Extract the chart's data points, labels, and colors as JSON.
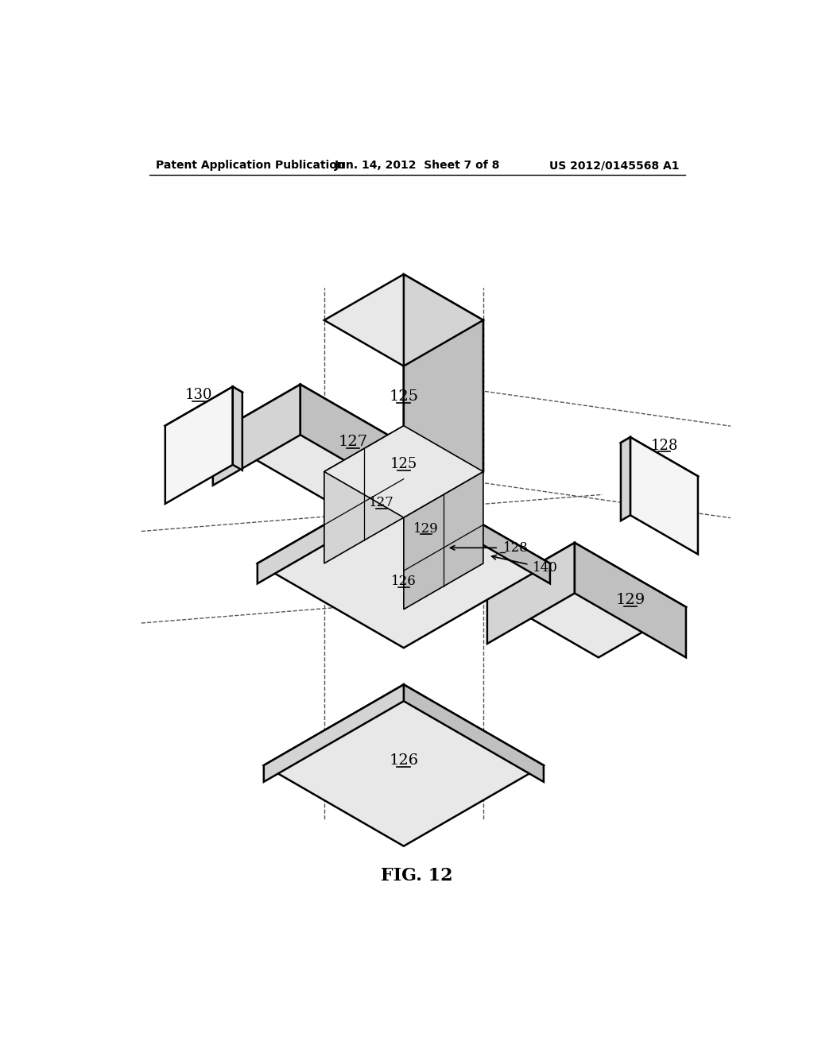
{
  "bg_color": "#ffffff",
  "line_color": "#000000",
  "lw_main": 1.8,
  "lw_inner": 1.2,
  "lw_dash": 1.0,
  "header_left": "Patent Application Publication",
  "header_center": "Jun. 14, 2012  Sheet 7 of 8",
  "header_right": "US 2012/0145568 A1",
  "fig_label": "FIG. 12",
  "fill_top": "#e8e8e8",
  "fill_left": "#d4d4d4",
  "fill_right": "#c0c0c0",
  "fill_white": "#f5f5f5"
}
